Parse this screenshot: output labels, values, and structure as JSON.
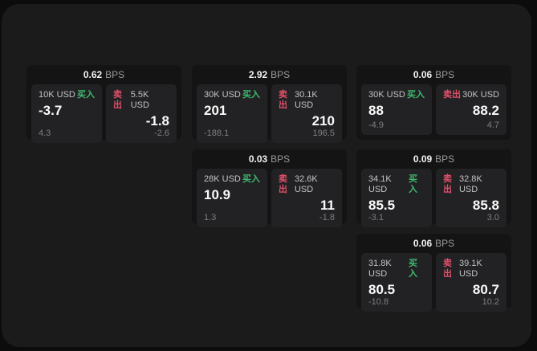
{
  "colors": {
    "buy_accent": "#3eb96f",
    "sell_accent": "#e0506a",
    "outer_background": "#0c0c0c",
    "panel_background": "#1b1b1c",
    "card_background": "#141415",
    "tile_background": "#222224"
  },
  "labels": {
    "bps_suffix": "BPS",
    "buy": "买入",
    "sell": "卖出"
  },
  "cards": [
    {
      "bps": "0.62",
      "buy": {
        "amount": "10K USD",
        "value": "-3.7",
        "delta": "4.3"
      },
      "sell": {
        "amount": "5.5K USD",
        "value": "-1.8",
        "delta": "-2.6"
      }
    },
    {
      "bps": "2.92",
      "buy": {
        "amount": "30K USD",
        "value": "201",
        "delta": "-188.1"
      },
      "sell": {
        "amount": "30.1K USD",
        "value": "210",
        "delta": "196.5"
      }
    },
    {
      "bps": "0.06",
      "buy": {
        "amount": "30K USD",
        "value": "88",
        "delta": "-4.9"
      },
      "sell": {
        "amount": "30K USD",
        "value": "88.2",
        "delta": "4.7"
      }
    },
    {
      "bps": "0.03",
      "buy": {
        "amount": "28K USD",
        "value": "10.9",
        "delta": "1.3"
      },
      "sell": {
        "amount": "32.6K USD",
        "value": "11",
        "delta": "-1.8"
      }
    },
    {
      "bps": "0.09",
      "buy": {
        "amount": "34.1K USD",
        "value": "85.5",
        "delta": "-3.1"
      },
      "sell": {
        "amount": "32.8K USD",
        "value": "85.8",
        "delta": "3.0"
      }
    },
    {
      "bps": "0.06",
      "buy": {
        "amount": "31.8K USD",
        "value": "80.5",
        "delta": "-10.8"
      },
      "sell": {
        "amount": "39.1K USD",
        "value": "80.7",
        "delta": "10.2"
      }
    }
  ]
}
